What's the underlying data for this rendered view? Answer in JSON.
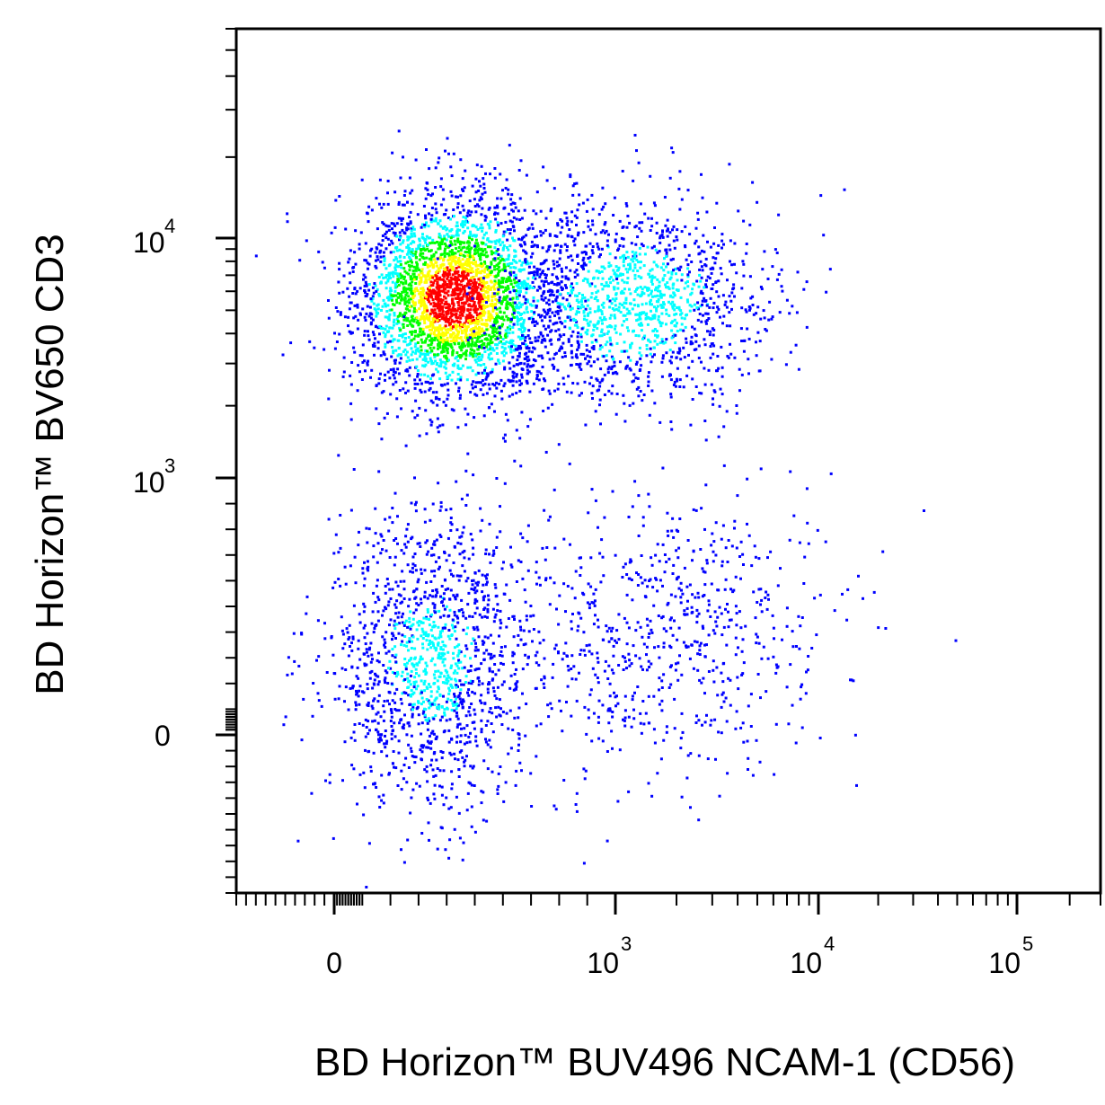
{
  "chart_data": {
    "type": "scatter",
    "subtype": "flow-cytometry-density-dot-plot",
    "xlabel": "BD Horizon™ BUV496 NCAM-1 (CD56)",
    "ylabel": "BD Horizon™ BV650 CD3",
    "x_scale": "biexponential",
    "y_scale": "biexponential",
    "x_ticks": [
      {
        "value": 0,
        "base": "0",
        "exp": ""
      },
      {
        "value": 1000,
        "base": "10",
        "exp": "3"
      },
      {
        "value": 10000,
        "base": "10",
        "exp": "4"
      },
      {
        "value": 100000,
        "base": "10",
        "exp": "5"
      }
    ],
    "y_ticks": [
      {
        "value": 0,
        "base": "0",
        "exp": ""
      },
      {
        "value": 1000,
        "base": "10",
        "exp": "3"
      },
      {
        "value": 10000,
        "base": "10",
        "exp": "4"
      }
    ],
    "density_colors": [
      "#0000ff",
      "#00ffff",
      "#00ff00",
      "#ffff00",
      "#ff0000"
    ],
    "grid": false,
    "legend": "none",
    "populations": [
      {
        "x_center": 130,
        "y_center": 6000,
        "relative_density": "very high"
      },
      {
        "x_center": 800,
        "y_center": 5500,
        "relative_density": "medium"
      },
      {
        "x_center": 120,
        "y_center": 150,
        "relative_density": "medium"
      },
      {
        "x_center": 1500,
        "y_center": 250,
        "relative_density": "low"
      }
    ]
  }
}
